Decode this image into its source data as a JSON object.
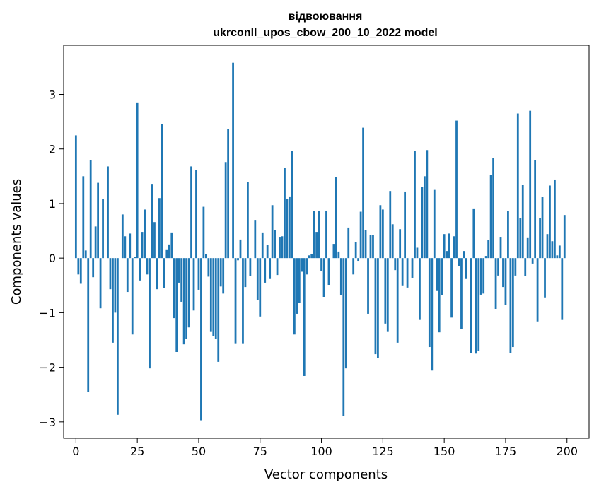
{
  "chart_data": {
    "type": "bar",
    "title_line1": "відвоювання",
    "title_line2": "ukrconll_upos_cbow_200_10_2022 model",
    "xlabel": "Vector components",
    "ylabel": "Components values",
    "xlim": [
      -5,
      209
    ],
    "ylim": [
      -3.3,
      3.9
    ],
    "xticks": [
      0,
      25,
      50,
      75,
      100,
      125,
      150,
      175,
      200
    ],
    "yticks": [
      -3,
      -2,
      -1,
      0,
      1,
      2,
      3
    ],
    "xtick_labels": [
      "0",
      "25",
      "50",
      "75",
      "100",
      "125",
      "150",
      "175",
      "200"
    ],
    "ytick_labels": [
      "−3",
      "−2",
      "−1",
      "0",
      "1",
      "2",
      "3"
    ],
    "bar_color": "#1f77b4",
    "x_start": 0,
    "values": [
      2.25,
      -0.3,
      -0.47,
      1.5,
      0.14,
      -2.45,
      1.8,
      -0.35,
      0.58,
      1.38,
      -0.92,
      1.08,
      0.0,
      1.68,
      -0.57,
      -1.55,
      -1.0,
      -2.87,
      0.0,
      0.8,
      0.4,
      -0.62,
      0.45,
      -1.4,
      0.02,
      2.84,
      -0.41,
      0.48,
      0.89,
      -0.3,
      -2.02,
      1.36,
      0.66,
      -0.57,
      1.1,
      2.46,
      -0.55,
      0.16,
      0.25,
      0.47,
      -1.1,
      -1.72,
      -0.45,
      -0.8,
      -1.58,
      -1.48,
      -1.27,
      1.68,
      -0.96,
      1.62,
      -0.58,
      -2.97,
      0.94,
      0.07,
      -0.34,
      -1.34,
      -1.43,
      -1.48,
      -1.9,
      -0.52,
      -0.65,
      1.76,
      2.36,
      0.0,
      3.58,
      -1.56,
      -0.04,
      0.34,
      -1.56,
      -0.53,
      1.4,
      -0.33,
      0.0,
      0.7,
      -0.77,
      -1.07,
      0.47,
      -0.45,
      0.24,
      -0.37,
      0.97,
      0.51,
      -0.31,
      0.39,
      0.4,
      1.65,
      1.08,
      1.13,
      1.97,
      -1.4,
      -1.02,
      -0.82,
      -0.25,
      -2.16,
      -0.3,
      0.05,
      0.08,
      0.86,
      0.48,
      0.87,
      -0.24,
      -0.71,
      0.87,
      -0.49,
      0.0,
      0.26,
      1.49,
      0.12,
      -0.68,
      -2.89,
      -2.02,
      0.56,
      0.0,
      -0.3,
      0.3,
      -0.05,
      0.85,
      2.39,
      0.51,
      -1.02,
      0.42,
      0.42,
      -1.76,
      -1.83,
      0.97,
      0.89,
      -1.2,
      -1.34,
      1.23,
      0.62,
      -0.22,
      -1.55,
      0.53,
      -0.5,
      1.22,
      -0.54,
      0.0,
      -0.36,
      1.97,
      0.19,
      -1.12,
      1.31,
      1.5,
      1.98,
      -1.63,
      -2.06,
      1.25,
      -0.59,
      -1.36,
      -0.68,
      0.44,
      0.13,
      0.45,
      -1.09,
      0.4,
      2.52,
      -0.15,
      -1.3,
      0.13,
      -0.37,
      0.0,
      -1.74,
      0.91,
      -1.75,
      -1.7,
      -0.67,
      -0.65,
      0.04,
      0.33,
      1.52,
      1.84,
      -0.93,
      -0.32,
      0.39,
      -0.53,
      -0.86,
      0.86,
      -1.74,
      -1.63,
      -0.32,
      2.65,
      0.73,
      1.34,
      -0.33,
      0.38,
      2.7,
      -0.1,
      1.79,
      -1.16,
      0.74,
      1.12,
      -0.72,
      0.44,
      1.33,
      0.31,
      1.44,
      0.05,
      0.23,
      -1.12,
      0.79
    ]
  }
}
